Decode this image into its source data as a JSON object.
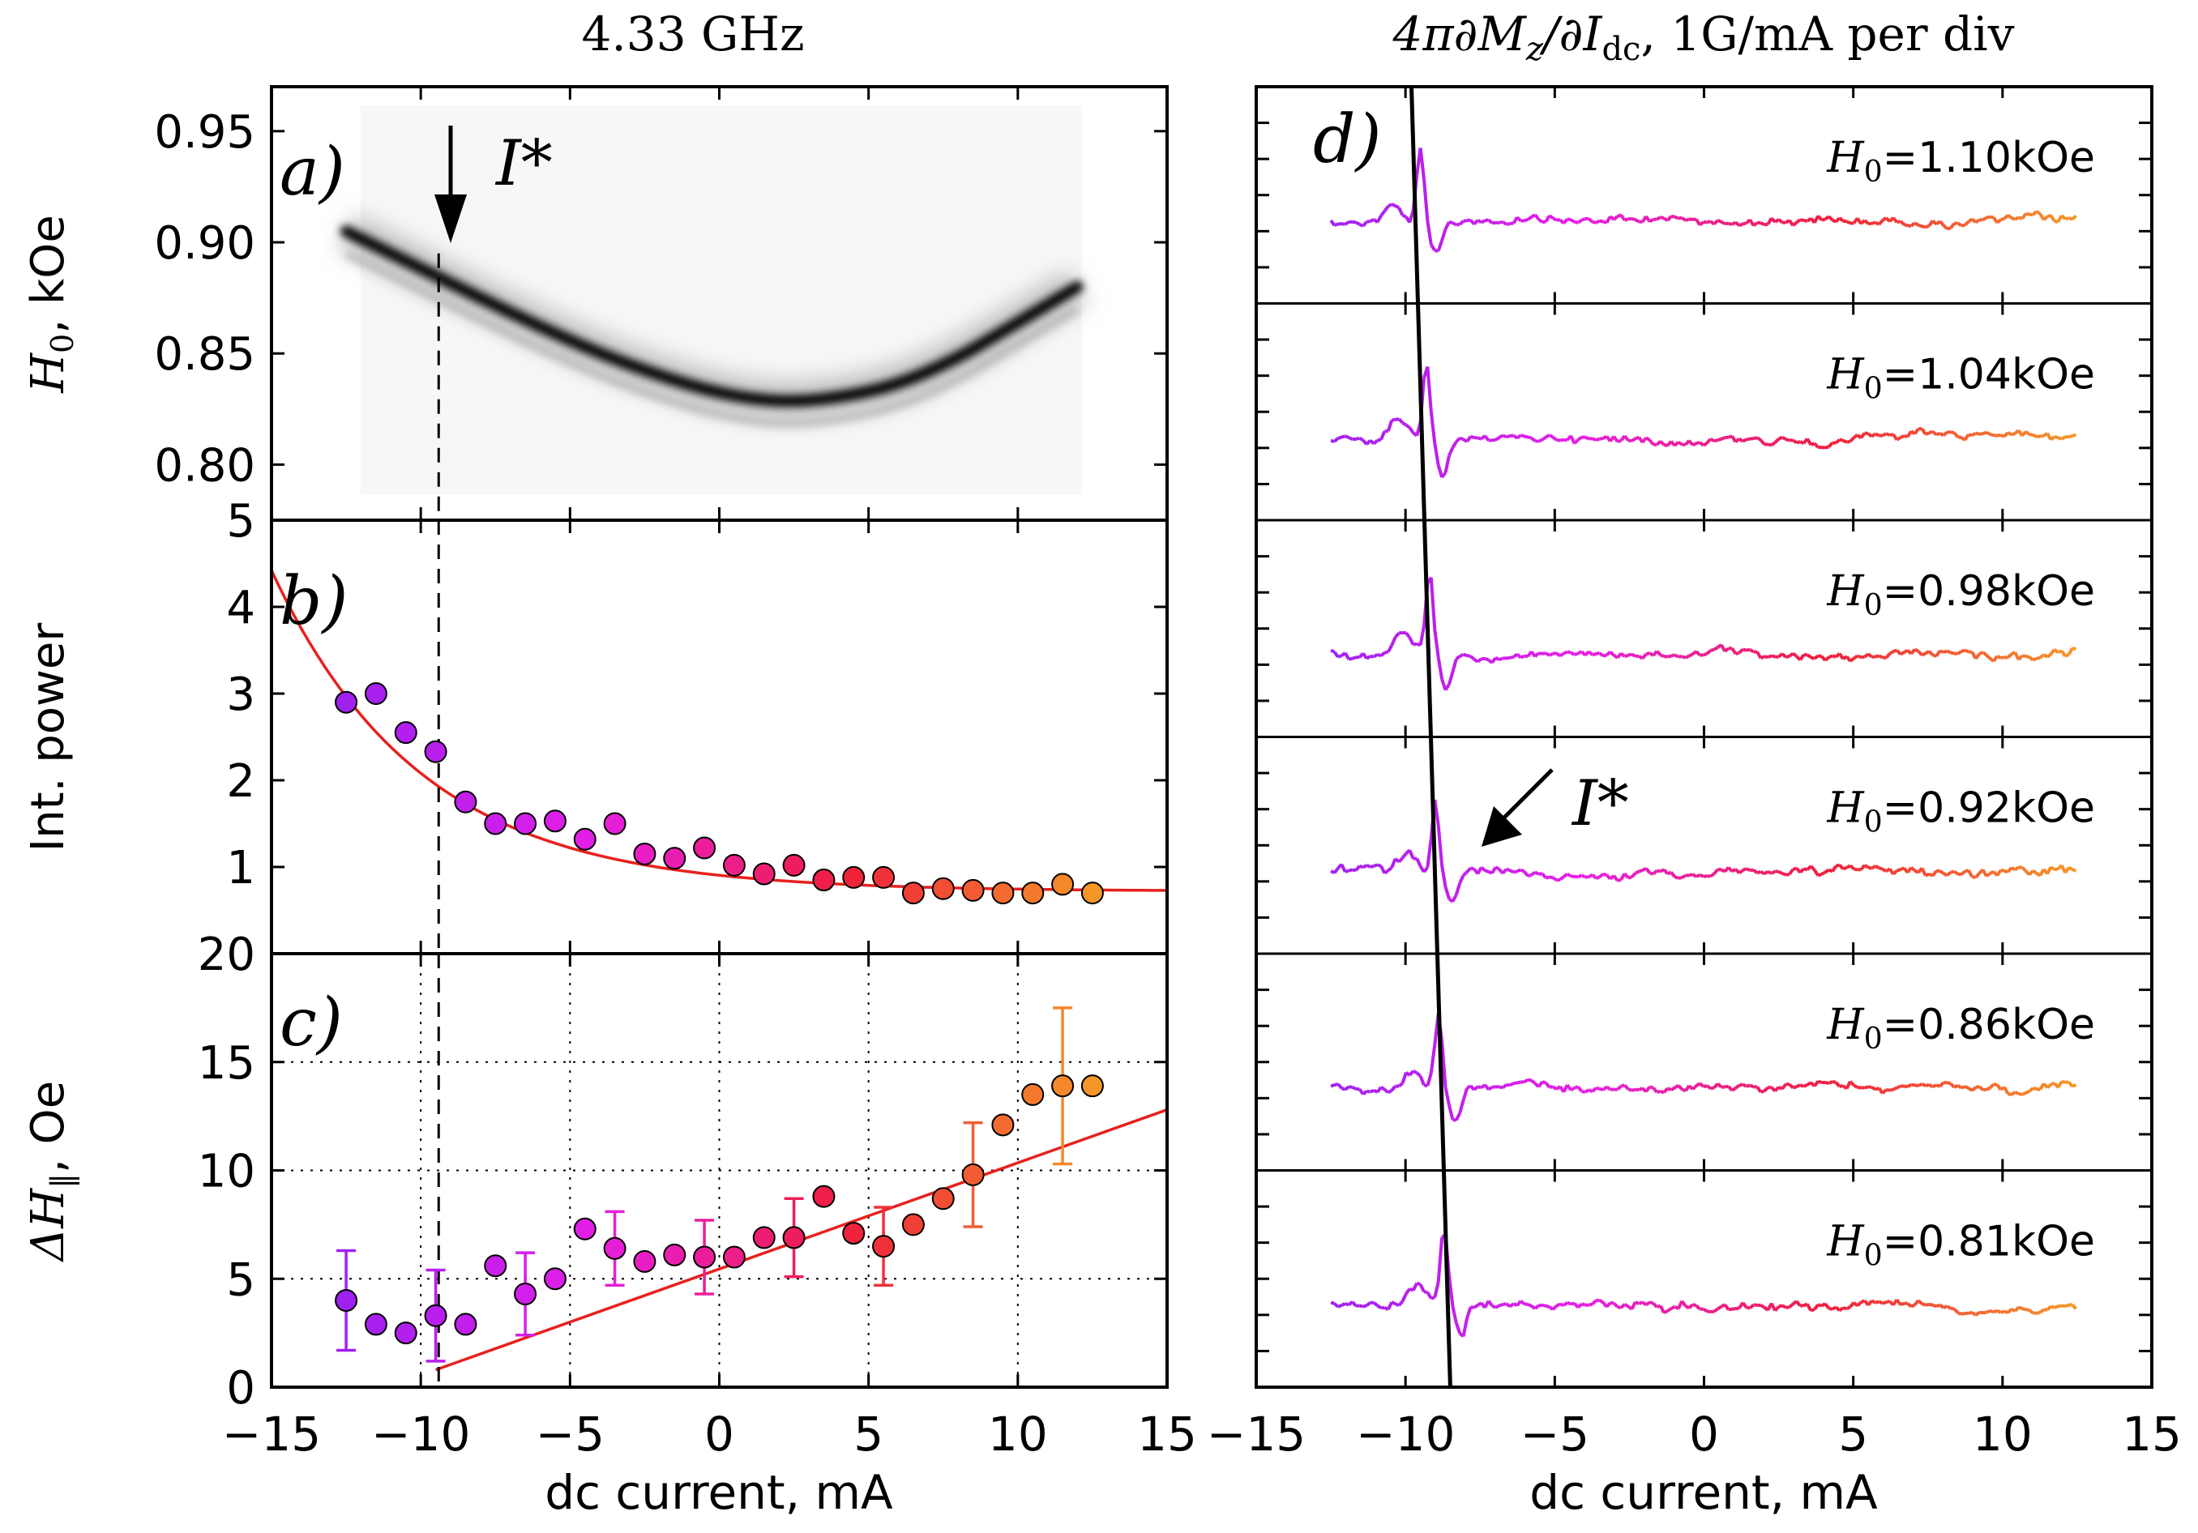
{
  "figure": {
    "left_title": "4.33 GHz",
    "right_title_prefix": "4π∂M",
    "right_title_sub_z": "z",
    "right_title_mid": "/∂I",
    "right_title_sub_dc": "dc",
    "right_title_suffix": ", 1G/mA per div",
    "xlabel_left": "dc current, mA",
    "xlabel_right": "dc current, mA"
  },
  "chart_data": [
    {
      "id": "a",
      "type": "heatmap",
      "panel_label": "a)",
      "annotation": "I*",
      "ylabel_symbol": "H",
      "ylabel_sub": "0",
      "ylabel_unit": ", kOe",
      "xlim": [
        -15,
        15
      ],
      "ylim": [
        0.775,
        0.97
      ],
      "yticks": [
        0.8,
        0.85,
        0.9,
        0.95
      ],
      "ytick_labels": [
        "0.80",
        "0.85",
        "0.90",
        "0.95"
      ],
      "ridge": {
        "x": [
          -12.5,
          -11,
          -9.5,
          -8,
          -6,
          -4,
          -2,
          0,
          2,
          4,
          6,
          8,
          9.5,
          11,
          12
        ],
        "y": [
          0.905,
          0.895,
          0.885,
          0.875,
          0.862,
          0.85,
          0.84,
          0.832,
          0.828,
          0.83,
          0.836,
          0.848,
          0.86,
          0.872,
          0.88
        ]
      },
      "marker_x": -9.4
    },
    {
      "id": "b",
      "type": "scatter",
      "panel_label": "b)",
      "ylabel": "Int. power",
      "xlim": [
        -15,
        15
      ],
      "ylim": [
        0,
        5
      ],
      "yticks": [
        1,
        2,
        3,
        4,
        5
      ],
      "ytick_labels": [
        "1",
        "2",
        "3",
        "4",
        "5"
      ],
      "x": [
        -12.5,
        -11.5,
        -10.5,
        -9.5,
        -8.5,
        -7.5,
        -6.5,
        -5.5,
        -4.5,
        -3.5,
        -2.5,
        -1.5,
        -0.5,
        0.5,
        1.5,
        2.5,
        3.5,
        4.5,
        5.5,
        6.5,
        7.5,
        8.5,
        9.5,
        10.5,
        11.5,
        12.5
      ],
      "values": [
        2.9,
        3.0,
        2.55,
        2.33,
        1.75,
        1.5,
        1.5,
        1.53,
        1.32,
        1.5,
        1.15,
        1.1,
        1.22,
        1.02,
        0.92,
        1.02,
        0.85,
        0.88,
        0.88,
        0.7,
        0.75,
        0.73,
        0.7,
        0.7,
        0.8,
        0.7
      ],
      "fit": {
        "form": "a*exp(-(x-x0)/tau)+c",
        "a": 3.7,
        "x0": -15,
        "tau": 5,
        "c": 0.72
      }
    },
    {
      "id": "c",
      "type": "scatter",
      "panel_label": "c)",
      "ylabel_symbol": "ΔH",
      "ylabel_sub": "∥",
      "ylabel_unit": ", Oe",
      "xlim": [
        -15,
        15
      ],
      "ylim": [
        0,
        20
      ],
      "yticks": [
        0,
        5,
        10,
        15,
        20
      ],
      "ytick_labels": [
        "0",
        "5",
        "10",
        "15",
        "20"
      ],
      "x": [
        -12.5,
        -11.5,
        -10.5,
        -9.5,
        -8.5,
        -7.5,
        -6.5,
        -5.5,
        -4.5,
        -3.5,
        -2.5,
        -1.5,
        -0.5,
        0.5,
        1.5,
        2.5,
        3.5,
        4.5,
        5.5,
        6.5,
        7.5,
        8.5,
        9.5,
        10.5,
        11.5,
        12.5
      ],
      "values": [
        4.0,
        2.9,
        2.5,
        3.3,
        2.9,
        5.6,
        4.3,
        5.0,
        7.3,
        6.4,
        5.8,
        6.1,
        6.0,
        6.0,
        6.9,
        6.9,
        8.8,
        7.1,
        6.5,
        7.5,
        8.7,
        9.8,
        12.1,
        13.5,
        13.9,
        13.9
      ],
      "errors": [
        2.3,
        0,
        0,
        2.1,
        0,
        0,
        1.9,
        0,
        0,
        1.7,
        0,
        0,
        1.7,
        0,
        0,
        1.8,
        0,
        0,
        1.8,
        0,
        0,
        2.4,
        0,
        0,
        3.6,
        0
      ],
      "fit_line": {
        "x": [
          -9.5,
          15
        ],
        "y": [
          0.8,
          12.8
        ]
      },
      "grid_x": [
        -10,
        -5,
        0,
        5,
        10
      ],
      "grid_y": [
        5,
        10,
        15
      ]
    },
    {
      "id": "d",
      "type": "line",
      "panel_label": "d)",
      "annotation": "I*",
      "field_symbol": "H",
      "field_sub": "0",
      "xlim": [
        -15,
        15
      ],
      "series": [
        {
          "name": "=1.10kOe",
          "peak_x": -9.5
        },
        {
          "name": "=1.04kOe",
          "peak_x": -9.3
        },
        {
          "name": "=0.98kOe",
          "peak_x": -9.2
        },
        {
          "name": "=0.92kOe",
          "peak_x": -9.0
        },
        {
          "name": "=0.86kOe",
          "peak_x": -8.9
        },
        {
          "name": "=0.81kOe",
          "peak_x": -8.7
        }
      ],
      "guide_line": {
        "x_top": -9.8,
        "x_bottom": -8.5
      }
    }
  ],
  "xaxis": {
    "ticks": [
      -15,
      -10,
      -5,
      0,
      5,
      10,
      15
    ],
    "tick_labels": [
      "−15",
      "−10",
      "−5",
      "0",
      "5",
      "10",
      "15"
    ]
  },
  "colors": {
    "fit": "#e8201e",
    "purple": "#a020f0",
    "magenta": "#e61ee6",
    "red": "#f01e3c",
    "orange": "#f59628",
    "axis": "#000000"
  }
}
